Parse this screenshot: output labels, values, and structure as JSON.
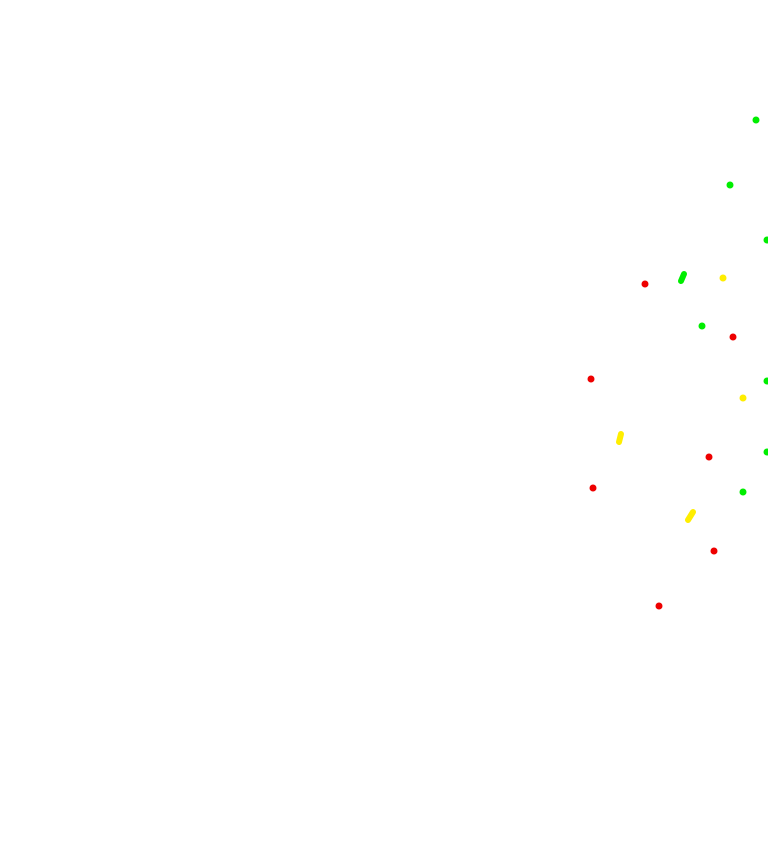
{
  "background_color": "#ffffff",
  "dot_colors": {
    "green": "#00ee00",
    "red": "#ee0000",
    "yellow": "#ffee00"
  },
  "dot_groups": [
    {
      "color": "green",
      "count": 9
    },
    {
      "color": "red",
      "count": 7
    },
    {
      "color": "yellow",
      "count": 4
    }
  ]
}
